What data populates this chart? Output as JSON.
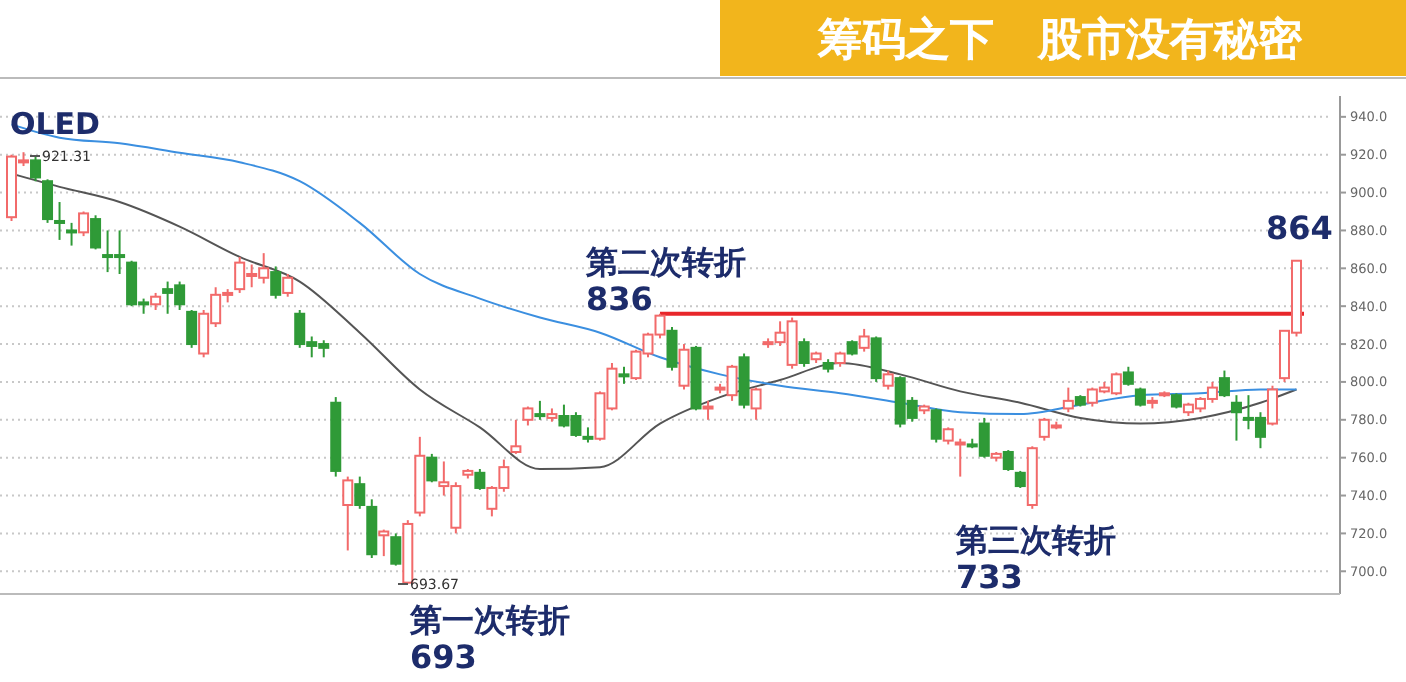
{
  "chart_data": {
    "type": "candlestick",
    "title": "OLED",
    "subtitle": "筹码之下　股市没有秘密",
    "categories": [
      null,
      null,
      null,
      null,
      null,
      null,
      null,
      null,
      null,
      null,
      null,
      null,
      null,
      null,
      null,
      null,
      null,
      null,
      null,
      null,
      null,
      null,
      null,
      null,
      null,
      null,
      null,
      null,
      null,
      null,
      null,
      null,
      null,
      null,
      null,
      null,
      null,
      null,
      null,
      null,
      null,
      null,
      null,
      null,
      null,
      null,
      null,
      null,
      null,
      null,
      null,
      null,
      null,
      null,
      null,
      null,
      null,
      null,
      null,
      null,
      null,
      null,
      null,
      null,
      null,
      null,
      null,
      null,
      null,
      null,
      null,
      null,
      null,
      null,
      null,
      null,
      null,
      null,
      null,
      null,
      null,
      null,
      null,
      null,
      null,
      null,
      null,
      null,
      null,
      null,
      null,
      null,
      null,
      null,
      null,
      null,
      null,
      null,
      null,
      null,
      null,
      null,
      null,
      null,
      null,
      null,
      null,
      null
    ],
    "ohlc": [
      [
        887,
        920,
        885,
        919
      ],
      [
        916,
        921.31,
        914,
        917
      ],
      [
        917,
        919,
        906,
        908
      ],
      [
        906,
        907,
        884,
        886
      ],
      [
        885,
        895,
        875,
        884
      ],
      [
        880,
        884,
        872,
        879
      ],
      [
        879,
        890,
        877,
        889
      ],
      [
        886,
        888,
        870,
        871
      ],
      [
        867,
        880,
        858,
        866
      ],
      [
        867,
        880,
        857,
        866
      ],
      [
        863,
        864,
        840,
        841
      ],
      [
        842,
        844,
        836,
        841
      ],
      [
        841,
        847,
        838,
        845
      ],
      [
        849,
        853,
        836,
        847
      ],
      [
        851,
        853,
        838,
        841
      ],
      [
        837,
        838,
        818,
        820
      ],
      [
        815,
        838,
        813,
        836
      ],
      [
        831,
        850,
        829,
        846
      ],
      [
        846,
        849,
        842,
        847
      ],
      [
        849,
        866,
        847,
        863
      ],
      [
        856,
        862,
        850,
        857
      ],
      [
        855,
        868,
        852,
        860
      ],
      [
        858,
        861,
        844,
        846
      ],
      [
        847,
        857,
        845,
        855
      ],
      [
        836,
        838,
        818,
        820
      ],
      [
        821,
        824,
        813,
        819
      ],
      [
        820,
        822,
        813,
        818
      ],
      [
        789,
        792,
        750,
        753
      ],
      [
        735,
        750,
        711,
        748
      ],
      [
        746,
        750,
        733,
        735
      ],
      [
        734,
        738,
        707,
        709
      ],
      [
        719,
        722,
        708,
        721
      ],
      [
        718,
        720,
        703,
        704
      ],
      [
        694,
        727,
        693.67,
        725
      ],
      [
        731,
        771,
        729,
        761
      ],
      [
        760,
        762,
        747,
        748
      ],
      [
        745,
        758,
        740,
        747
      ],
      [
        723,
        747,
        720,
        745
      ],
      [
        751,
        754,
        749,
        753
      ],
      [
        752,
        754,
        743,
        744
      ],
      [
        733,
        745,
        729,
        744
      ],
      [
        744,
        759,
        742,
        755
      ],
      [
        763,
        780,
        762,
        766
      ],
      [
        780,
        787,
        777,
        786
      ],
      [
        783,
        790,
        780,
        782
      ],
      [
        781,
        786,
        779,
        783
      ],
      [
        782,
        788,
        776,
        777
      ],
      [
        782,
        784,
        771,
        772
      ],
      [
        771,
        776,
        768,
        770
      ],
      [
        770,
        795,
        769,
        794
      ],
      [
        786,
        810,
        785,
        807
      ],
      [
        804,
        808,
        799,
        803
      ],
      [
        802,
        817,
        801,
        816
      ],
      [
        815,
        826,
        813,
        825
      ],
      [
        825,
        836,
        823,
        835
      ],
      [
        827,
        829,
        806,
        808
      ],
      [
        798,
        820,
        796,
        817
      ],
      [
        818,
        819,
        785,
        786
      ],
      [
        786,
        790,
        780,
        787
      ],
      [
        796,
        799,
        794,
        797
      ],
      [
        793,
        809,
        790,
        808
      ],
      [
        813,
        815,
        786,
        788
      ],
      [
        786,
        797,
        780,
        796
      ],
      [
        820,
        823,
        818,
        821
      ],
      [
        821,
        832,
        819,
        826
      ],
      [
        809,
        834,
        807,
        832
      ],
      [
        821,
        823,
        808,
        810
      ],
      [
        812,
        816,
        810,
        815
      ],
      [
        810,
        812,
        805,
        807
      ],
      [
        810,
        816,
        808,
        815
      ],
      [
        821,
        822,
        814,
        815
      ],
      [
        818,
        828,
        816,
        824
      ],
      [
        823,
        824,
        800,
        802
      ],
      [
        798,
        806,
        796,
        804
      ],
      [
        802,
        803,
        776,
        778
      ],
      [
        790,
        792,
        779,
        781
      ],
      [
        785,
        788,
        783,
        787
      ],
      [
        785,
        786,
        768,
        770
      ],
      [
        769,
        776,
        767,
        775
      ],
      [
        767,
        770,
        750,
        768
      ],
      [
        767,
        770,
        765,
        766
      ],
      [
        778,
        781,
        760,
        761
      ],
      [
        760,
        763,
        758,
        762
      ],
      [
        763,
        764,
        753,
        754
      ],
      [
        752,
        753,
        744,
        745
      ],
      [
        735,
        766,
        733,
        765
      ],
      [
        771,
        781,
        769,
        780
      ],
      [
        776,
        779,
        775,
        777
      ],
      [
        786,
        797,
        784,
        790
      ],
      [
        792,
        793,
        787,
        788
      ],
      [
        789,
        797,
        787,
        796
      ],
      [
        795,
        800,
        794,
        797
      ],
      [
        794,
        805,
        793,
        804
      ],
      [
        805,
        808,
        798,
        799
      ],
      [
        796,
        797,
        787,
        788
      ],
      [
        789,
        792,
        786,
        790
      ],
      [
        793,
        795,
        792,
        794
      ],
      [
        793,
        794,
        786,
        787
      ],
      [
        784,
        789,
        782,
        788
      ],
      [
        786,
        792,
        784,
        791
      ],
      [
        791,
        800,
        789,
        797
      ],
      [
        802,
        806,
        792,
        793
      ],
      [
        789,
        793,
        769,
        784
      ],
      [
        781,
        793,
        775,
        780
      ],
      [
        781,
        784,
        765,
        771
      ],
      [
        778,
        798,
        777,
        796
      ],
      [
        802,
        827,
        800,
        827
      ],
      [
        826,
        864,
        824,
        864
      ]
    ],
    "colors": [
      "#f26a6a",
      "#f26a6a",
      "#2f9a37",
      "#2f9a37",
      "#2f9a37",
      "#2f9a37",
      "#f26a6a",
      "#2f9a37",
      "#2f9a37",
      "#2f9a37",
      "#2f9a37",
      "#2f9a37",
      "#f26a6a",
      "#2f9a37",
      "#2f9a37",
      "#2f9a37",
      "#f26a6a",
      "#f26a6a",
      "#f26a6a",
      "#f26a6a",
      "#f26a6a",
      "#f26a6a",
      "#2f9a37",
      "#f26a6a",
      "#2f9a37",
      "#2f9a37",
      "#2f9a37",
      "#2f9a37",
      "#f26a6a",
      "#2f9a37",
      "#2f9a37",
      "#f26a6a",
      "#2f9a37",
      "#f26a6a",
      "#f26a6a",
      "#2f9a37",
      "#f26a6a",
      "#f26a6a",
      "#f26a6a",
      "#2f9a37",
      "#f26a6a",
      "#f26a6a",
      "#f26a6a",
      "#f26a6a",
      "#2f9a37",
      "#f26a6a",
      "#2f9a37",
      "#2f9a37",
      "#2f9a37",
      "#f26a6a",
      "#f26a6a",
      "#2f9a37",
      "#f26a6a",
      "#f26a6a",
      "#f26a6a",
      "#2f9a37",
      "#f26a6a",
      "#2f9a37",
      "#f26a6a",
      "#f26a6a",
      "#f26a6a",
      "#2f9a37",
      "#f26a6a",
      "#f26a6a",
      "#f26a6a",
      "#f26a6a",
      "#2f9a37",
      "#f26a6a",
      "#2f9a37",
      "#f26a6a",
      "#2f9a37",
      "#f26a6a",
      "#2f9a37",
      "#f26a6a",
      "#2f9a37",
      "#2f9a37",
      "#f26a6a",
      "#2f9a37",
      "#f26a6a",
      "#f26a6a",
      "#2f9a37",
      "#2f9a37",
      "#f26a6a",
      "#2f9a37",
      "#2f9a37",
      "#f26a6a",
      "#f26a6a",
      "#f26a6a",
      "#f26a6a",
      "#2f9a37",
      "#f26a6a",
      "#f26a6a",
      "#f26a6a",
      "#2f9a37",
      "#2f9a37",
      "#f26a6a",
      "#f26a6a",
      "#2f9a37",
      "#f26a6a",
      "#f26a6a",
      "#f26a6a",
      "#2f9a37",
      "#2f9a37",
      "#2f9a37",
      "#2f9a37",
      "#f26a6a",
      "#f26a6a",
      "#f26a6a"
    ],
    "series": [
      {
        "type": "line",
        "color": "#555555",
        "values": [
          910,
          null,
          null,
          null,
          903,
          null,
          null,
          null,
          null,
          895,
          null,
          null,
          null,
          null,
          882,
          null,
          null,
          null,
          null,
          866,
          null,
          null,
          null,
          null,
          853,
          null,
          null,
          null,
          null,
          826,
          null,
          null,
          null,
          null,
          796,
          null,
          null,
          null,
          null,
          776,
          null,
          null,
          null,
          null,
          754,
          null,
          null,
          null,
          null,
          755,
          null,
          null,
          null,
          null,
          778,
          null,
          null,
          null,
          null,
          792,
          null,
          null,
          null,
          null,
          801,
          null,
          null,
          null,
          null,
          810,
          null,
          null,
          null,
          null,
          804,
          null,
          null,
          null,
          null,
          795,
          null,
          null,
          null,
          null,
          789,
          null,
          null,
          null,
          null,
          781,
          null,
          null,
          null,
          null,
          778,
          null,
          null,
          null,
          null,
          781,
          null,
          null,
          null,
          null,
          789,
          null,
          null,
          796
        ]
      },
      {
        "type": "line",
        "color": "#3b8fe0",
        "values": [
          936,
          null,
          null,
          null,
          929,
          null,
          null,
          null,
          null,
          926,
          null,
          null,
          null,
          null,
          921,
          null,
          null,
          null,
          null,
          916,
          null,
          null,
          null,
          null,
          906,
          null,
          null,
          null,
          null,
          884,
          null,
          null,
          null,
          null,
          857,
          null,
          null,
          null,
          null,
          844,
          null,
          null,
          null,
          null,
          834,
          null,
          null,
          null,
          null,
          826,
          null,
          null,
          null,
          null,
          813,
          null,
          null,
          null,
          null,
          804,
          null,
          null,
          null,
          null,
          798,
          null,
          null,
          null,
          null,
          794,
          null,
          null,
          null,
          null,
          789,
          null,
          null,
          null,
          null,
          784,
          null,
          null,
          null,
          null,
          783,
          null,
          null,
          null,
          null,
          788,
          null,
          null,
          null,
          null,
          793,
          null,
          null,
          null,
          null,
          794,
          null,
          null,
          null,
          null,
          796,
          null,
          null,
          796
        ]
      }
    ],
    "ylim": [
      688,
      951
    ],
    "yticks": [
      {
        "value": 700,
        "label": "700.0"
      },
      {
        "value": 720,
        "label": "720.0"
      },
      {
        "value": 740,
        "label": "740.0"
      },
      {
        "value": 760,
        "label": "760.0"
      },
      {
        "value": 780,
        "label": "780.0"
      },
      {
        "value": 800,
        "label": "800.0"
      },
      {
        "value": 820,
        "label": "820.0"
      },
      {
        "value": 840,
        "label": "840.0"
      },
      {
        "value": 860,
        "label": "860.0"
      },
      {
        "value": 880,
        "label": "880.0"
      },
      {
        "value": 900,
        "label": "900.0"
      },
      {
        "value": 920,
        "label": "920.0"
      },
      {
        "value": 940,
        "label": "940.0"
      }
    ],
    "grid": "y",
    "tick_labels": "y",
    "ref_lines": [
      {
        "axis": "y",
        "value": 836,
        "color": "#e8262a"
      }
    ],
    "annotations": [
      "第一次转折\n693",
      "第二次转折\n836",
      "第三次转折\n733",
      "864",
      "921.31",
      "693.67"
    ]
  }
}
